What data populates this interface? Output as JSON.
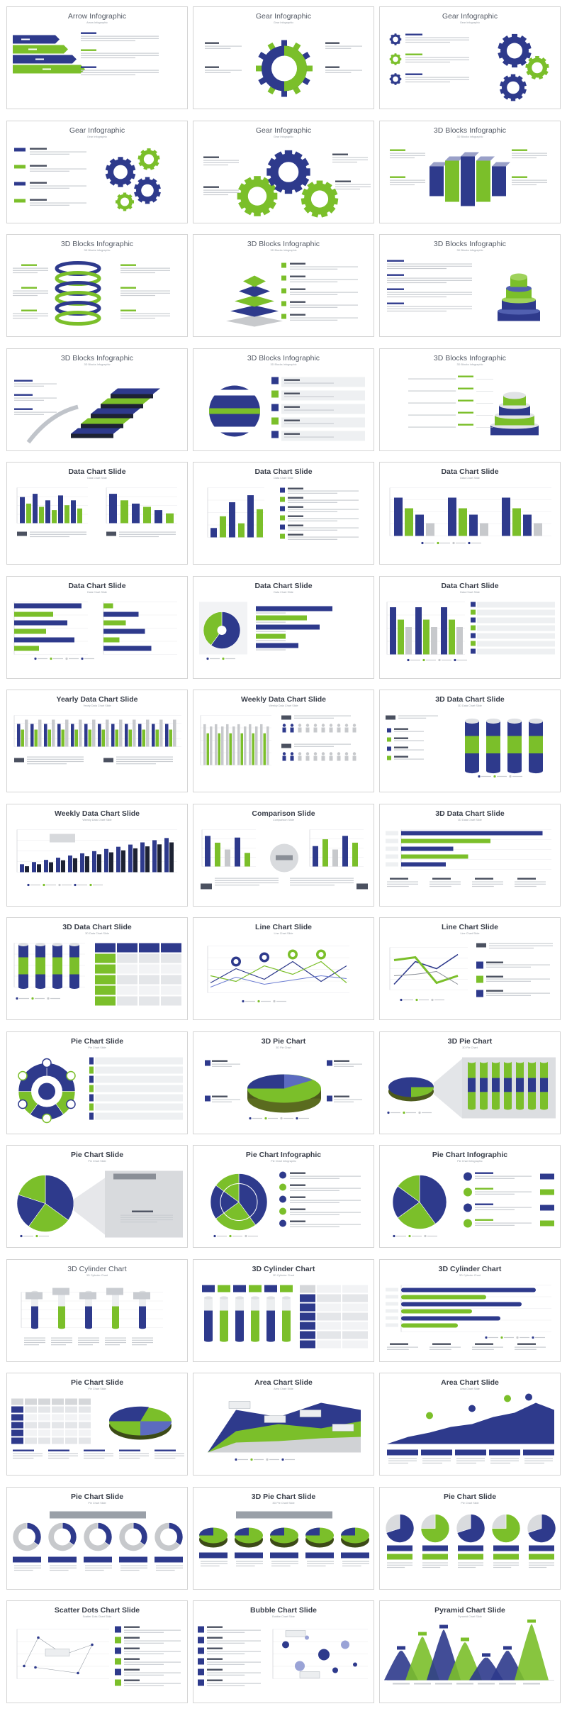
{
  "colors": {
    "navy": "#2e3a8c",
    "green": "#7bbf2a",
    "gray": "#c7c9cc",
    "dark": "#1d2233",
    "text": "#9aa0a8"
  },
  "slides": [
    {
      "title": "Arrow Infographic",
      "subtitle": "Arrow Infographic",
      "art": "arrows",
      "bold": false
    },
    {
      "title": "Gear Infographic",
      "subtitle": "Gear Infographic",
      "art": "gear-ring",
      "bold": false
    },
    {
      "title": "Gear Infographic",
      "subtitle": "Gear Infographic",
      "art": "gear-stack",
      "bold": false
    },
    {
      "title": "Gear Infographic",
      "subtitle": "Gear Infographic",
      "art": "gear-percent",
      "bold": false
    },
    {
      "title": "Gear Infographic",
      "subtitle": "Gear Infographic",
      "art": "gear-chain",
      "bold": false
    },
    {
      "title": "3D Blocks Infographic",
      "subtitle": "3D Blocks Infographic",
      "art": "blocks-prism",
      "bold": false
    },
    {
      "title": "3D Blocks Infographic",
      "subtitle": "3D Blocks Infographic",
      "art": "blocks-rings",
      "bold": false
    },
    {
      "title": "3D Blocks Infographic",
      "subtitle": "3D Blocks Infographic",
      "art": "blocks-pyramid",
      "bold": false
    },
    {
      "title": "3D Blocks Infographic",
      "subtitle": "3D Blocks Infographic",
      "art": "blocks-cylinder",
      "bold": false
    },
    {
      "title": "3D Blocks Infographic",
      "subtitle": "3D Blocks Infographic",
      "art": "blocks-stairs",
      "bold": false
    },
    {
      "title": "3D Blocks Infographic",
      "subtitle": "3D Blocks Infographic",
      "art": "blocks-sphere",
      "bold": false
    },
    {
      "title": "3D Blocks Infographic",
      "subtitle": "3D Blocks Infographic",
      "art": "blocks-cake",
      "bold": false
    },
    {
      "title": "Data Chart Slide",
      "subtitle": "Data Chart Slide",
      "art": "chart-duo",
      "bold": true
    },
    {
      "title": "Data Chart Slide",
      "subtitle": "Data Chart Slide",
      "art": "chart-checklist",
      "bold": true
    },
    {
      "title": "Data Chart Slide",
      "subtitle": "Data Chart Slide",
      "art": "chart-groups",
      "bold": true
    },
    {
      "title": "Data Chart Slide",
      "subtitle": "Data Chart Slide",
      "art": "chart-hbars",
      "bold": true
    },
    {
      "title": "Data Chart Slide",
      "subtitle": "Data Chart Slide",
      "art": "chart-donut-bars",
      "bold": true
    },
    {
      "title": "Data Chart Slide",
      "subtitle": "Data Chart Slide",
      "art": "chart-bars-list",
      "bold": true
    },
    {
      "title": "Yearly Data Chart Slide",
      "subtitle": "Yearly Data Chart Slide",
      "art": "chart-yearly",
      "bold": true
    },
    {
      "title": "Weekly Data Chart Slide",
      "subtitle": "Weekly Data Chart Slide",
      "art": "chart-weekly-people",
      "bold": true
    },
    {
      "title": "3D Data Chart Slide",
      "subtitle": "3D Data Chart Slide",
      "art": "chart-3d-cylinders",
      "bold": true
    },
    {
      "title": "Weekly Data Chart Slide",
      "subtitle": "Weekly Data Chart Slide",
      "art": "chart-weekly-rising",
      "bold": true
    },
    {
      "title": "Comparison Slide",
      "subtitle": "Comparison Slide",
      "art": "chart-comparison",
      "bold": true
    },
    {
      "title": "3D Data Chart Slide",
      "subtitle": "3D Data Chart Slide",
      "art": "chart-3d-hbars",
      "bold": true
    },
    {
      "title": "3D Data Chart Slide",
      "subtitle": "3D Data Chart Slide",
      "art": "chart-3d-table",
      "bold": true
    },
    {
      "title": "Line Chart Slide",
      "subtitle": "Line Chart Slide",
      "art": "chart-line-pins",
      "bold": true
    },
    {
      "title": "Line Chart Slide",
      "subtitle": "Line Chart Slide",
      "art": "chart-line-cross",
      "bold": true
    },
    {
      "title": "Pie Chart Slide",
      "subtitle": "Pie Chart Slide",
      "art": "pie-social",
      "bold": true
    },
    {
      "title": "3D Pie Chart",
      "subtitle": "3D Pie Chart",
      "art": "pie-3d",
      "bold": true
    },
    {
      "title": "3D Pie Chart",
      "subtitle": "3D Pie Chart",
      "art": "pie-3d-zoom",
      "bold": true
    },
    {
      "title": "Pie Chart Slide",
      "subtitle": "Pie Chart Slide",
      "art": "pie-budget",
      "bold": true
    },
    {
      "title": "Pie Chart Infographic",
      "subtitle": "Pie Chart Infographic",
      "art": "pie-info",
      "bold": true
    },
    {
      "title": "Pie Chart Infographic",
      "subtitle": "Pie Chart Infographic",
      "art": "pie-info-pct",
      "bold": true
    },
    {
      "title": "3D Cylinder Chart",
      "subtitle": "3D Cylinder Chart",
      "art": "cyl-tubes",
      "bold": false
    },
    {
      "title": "3D Cylinder Chart",
      "subtitle": "3D Cylinder Chart",
      "art": "cyl-table",
      "bold": true
    },
    {
      "title": "3D Cylinder Chart",
      "subtitle": "3D Cylinder Chart",
      "art": "cyl-hbars",
      "bold": true
    },
    {
      "title": "Pie Chart Slide",
      "subtitle": "Pie Chart Slide",
      "art": "pie-table",
      "bold": true
    },
    {
      "title": "Area Chart Slide",
      "subtitle": "Area Chart Slide",
      "art": "area-bands",
      "bold": true
    },
    {
      "title": "Area Chart Slide",
      "subtitle": "Area Chart Slide",
      "art": "area-rising",
      "bold": true
    },
    {
      "title": "Pie Chart Slide",
      "subtitle": "Pie Chart Slide",
      "art": "pie-row-gray",
      "bold": true
    },
    {
      "title": "3D Pie Chart Slide",
      "subtitle": "3D Pie Chart Slide",
      "art": "pie-row-3d",
      "bold": true
    },
    {
      "title": "Pie Chart Slide",
      "subtitle": "Pie Chart Slide",
      "art": "pie-row-flat",
      "bold": true
    },
    {
      "title": "Scatter Dots Chart Slide",
      "subtitle": "Scatter Dots Chart Slide",
      "art": "scatter-dots",
      "bold": true
    },
    {
      "title": "Bubble Chart Slide",
      "subtitle": "Bubble Chart Slide",
      "art": "bubble-chart",
      "bold": true
    },
    {
      "title": "Pyramid Chart Slide",
      "subtitle": "Pyramid Chart Slide",
      "art": "pyramid-chart",
      "bold": true
    }
  ]
}
